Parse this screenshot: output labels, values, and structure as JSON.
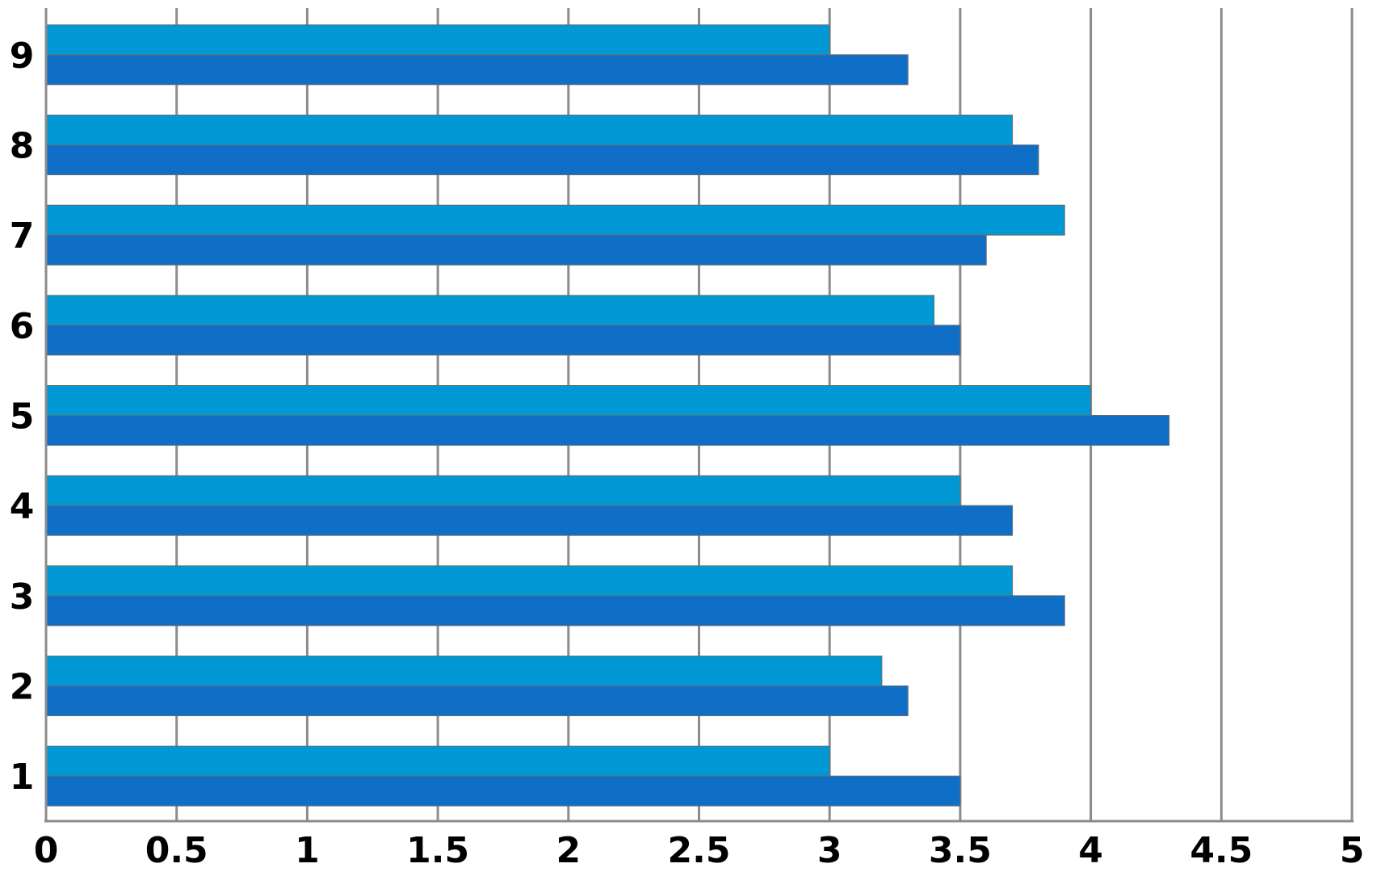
{
  "chart_data": {
    "type": "bar",
    "orientation": "horizontal",
    "title": "",
    "xlabel": "",
    "ylabel": "",
    "categories": [
      "1",
      "2",
      "3",
      "4",
      "5",
      "6",
      "7",
      "8",
      "9"
    ],
    "x_ticks": [
      "0",
      "0.5",
      "1",
      "1.5",
      "2",
      "2.5",
      "3",
      "3.5",
      "4",
      "4.5",
      "5"
    ],
    "xlim": [
      0,
      5
    ],
    "grid": "vertical",
    "legend": "none",
    "series": [
      {
        "color": "#0099d6",
        "values": [
          3.0,
          3.2,
          3.7,
          3.5,
          4.0,
          3.4,
          3.9,
          3.7,
          3.0
        ]
      },
      {
        "color": "#0f6fc6",
        "values": [
          3.5,
          3.3,
          3.9,
          3.7,
          4.3,
          3.5,
          3.6,
          3.8,
          3.3
        ]
      }
    ]
  }
}
